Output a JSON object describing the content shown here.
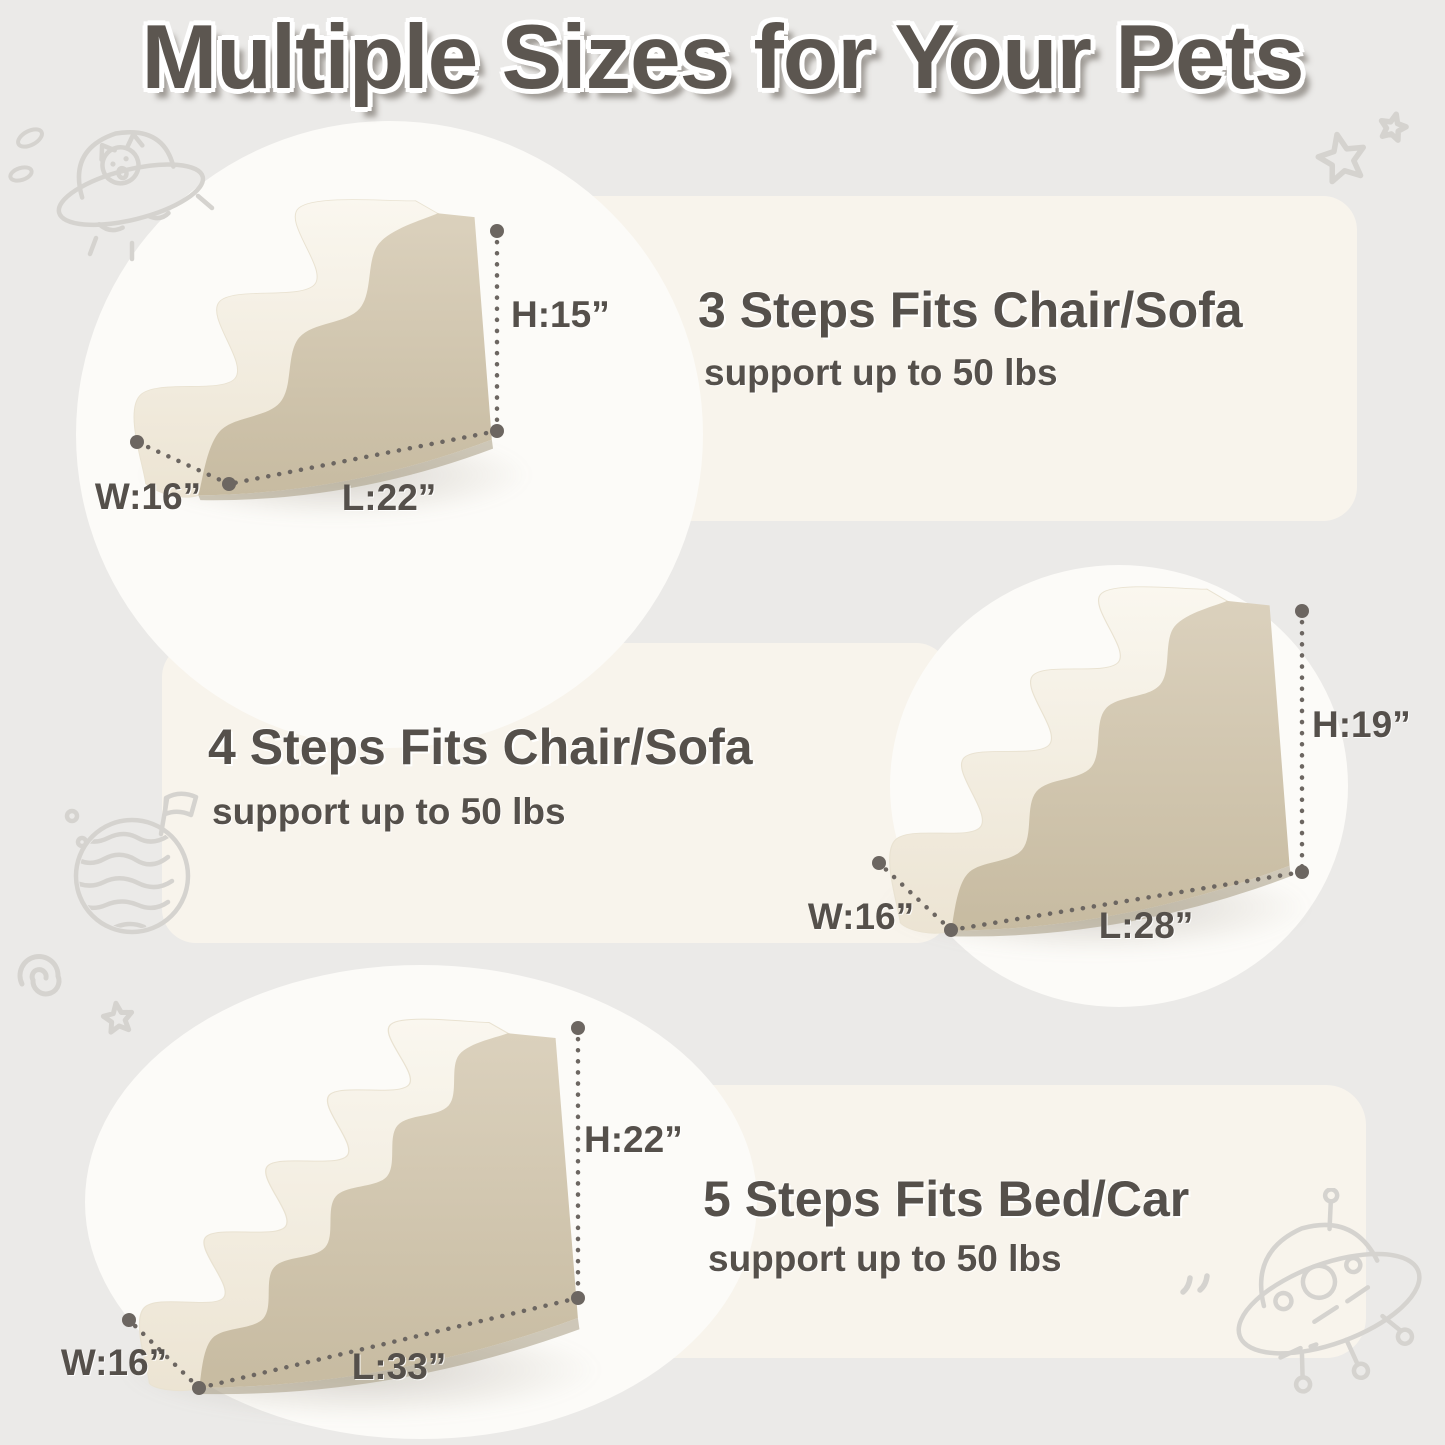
{
  "title": "Multiple Sizes for Your Pets",
  "sections": [
    {
      "name": "3-step-pet-stairs",
      "steps": 3,
      "headline": "3 Steps Fits Chair/Sofa",
      "support": "support up to 50 lbs",
      "dims": {
        "h": "H:15”",
        "w": "W:16”",
        "l": "L:22”"
      }
    },
    {
      "name": "4-step-pet-stairs",
      "steps": 4,
      "headline": "4 Steps Fits Chair/Sofa",
      "support": "support up to 50 lbs",
      "dims": {
        "h": "H:19”",
        "w": "W:16”",
        "l": "L:28”"
      }
    },
    {
      "name": "5-step-pet-stairs",
      "steps": 5,
      "headline": "5 Steps Fits Bed/Car",
      "support": "support up to 50 lbs",
      "dims": {
        "h": "H:22”",
        "w": "W:16”",
        "l": "L:33”"
      }
    }
  ],
  "colors": {
    "background": "#ebeae8",
    "band": "#f8f4ec",
    "circle": "#fcfbf8",
    "ink": "#55504b",
    "title": "#5c5650",
    "dotline": "#6c6661",
    "plush_light": "#faf7ef",
    "plush_dark": "#ece4d3",
    "tan_light": "#dbd1bd",
    "tan_dark": "#c7bba1",
    "rim": "#a89c84",
    "doodle": "#d5d3cf"
  },
  "decorations": [
    "ufo-cat-doodle-icon",
    "beans-doodle-icon",
    "stars-doodle-icon",
    "planet-flag-doodle-icon",
    "spiral-doodle-icon",
    "small-star-doodle-icon",
    "quote-marks-doodle-icon",
    "ufo-doodle-icon"
  ]
}
